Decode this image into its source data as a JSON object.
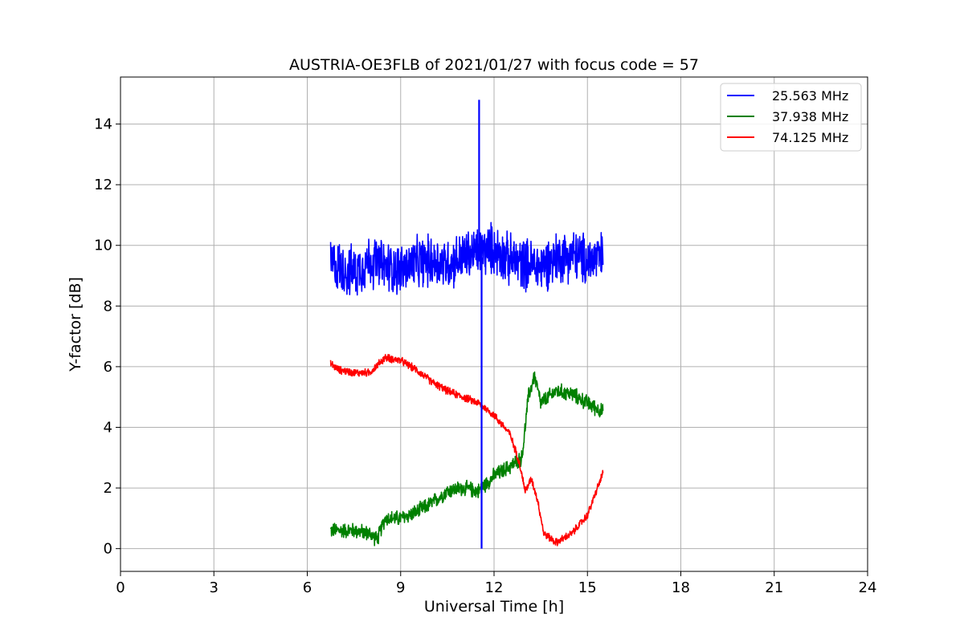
{
  "chart_data": {
    "type": "line",
    "title": "AUSTRIA-OE3FLB of 2021/01/27 with focus code = 57",
    "xlabel": "Universal Time [h]",
    "ylabel": "Y-factor [dB]",
    "xlim": [
      0,
      24
    ],
    "ylim": [
      -0.75,
      15.55
    ],
    "xticks": [
      0,
      3,
      6,
      9,
      12,
      15,
      18,
      21,
      24
    ],
    "yticks": [
      0,
      2,
      4,
      6,
      8,
      10,
      12,
      14
    ],
    "grid": true,
    "legend_position": "top-right",
    "series": [
      {
        "name": "25.563 MHz",
        "color": "#0000ff",
        "noise_amplitude": 1.0,
        "x": [
          6.75,
          7.0,
          7.5,
          8.0,
          8.5,
          9.0,
          9.5,
          10.0,
          10.5,
          11.0,
          11.5,
          12.0,
          12.5,
          13.0,
          13.5,
          14.0,
          14.5,
          15.0,
          15.5
        ],
        "y": [
          9.4,
          9.3,
          9.1,
          9.5,
          9.3,
          9.2,
          9.4,
          9.5,
          9.4,
          9.6,
          9.8,
          9.9,
          9.5,
          9.4,
          9.3,
          9.6,
          9.7,
          9.5,
          9.6
        ],
        "spikes": [
          {
            "x": 11.52,
            "y_min": 9.5,
            "y_max": 14.8
          },
          {
            "x": 11.6,
            "y_min": 0.0,
            "y_max": 9.6
          }
        ]
      },
      {
        "name": "37.938 MHz",
        "color": "#008000",
        "noise_amplitude": 0.3,
        "x": [
          6.75,
          7.0,
          7.5,
          8.0,
          8.25,
          8.5,
          9.0,
          9.5,
          10.0,
          10.5,
          11.0,
          11.5,
          12.0,
          12.5,
          12.9,
          13.1,
          13.3,
          13.5,
          14.0,
          14.5,
          15.0,
          15.5
        ],
        "y": [
          0.6,
          0.6,
          0.6,
          0.5,
          0.3,
          1.0,
          1.0,
          1.2,
          1.5,
          1.9,
          2.0,
          1.9,
          2.4,
          2.7,
          3.0,
          5.0,
          5.7,
          4.8,
          5.2,
          5.1,
          4.8,
          4.5
        ]
      },
      {
        "name": "74.125 MHz",
        "color": "#ff0000",
        "noise_amplitude": 0.15,
        "x": [
          6.75,
          7.0,
          7.5,
          8.0,
          8.5,
          9.0,
          9.5,
          10.0,
          10.5,
          11.0,
          11.5,
          12.0,
          12.5,
          12.8,
          13.0,
          13.2,
          13.4,
          13.6,
          14.0,
          14.5,
          15.0,
          15.5
        ],
        "y": [
          6.1,
          5.9,
          5.8,
          5.8,
          6.3,
          6.2,
          5.9,
          5.5,
          5.2,
          5.0,
          4.8,
          4.4,
          3.8,
          2.9,
          1.9,
          2.3,
          1.6,
          0.5,
          0.2,
          0.5,
          1.1,
          2.5
        ]
      }
    ]
  }
}
